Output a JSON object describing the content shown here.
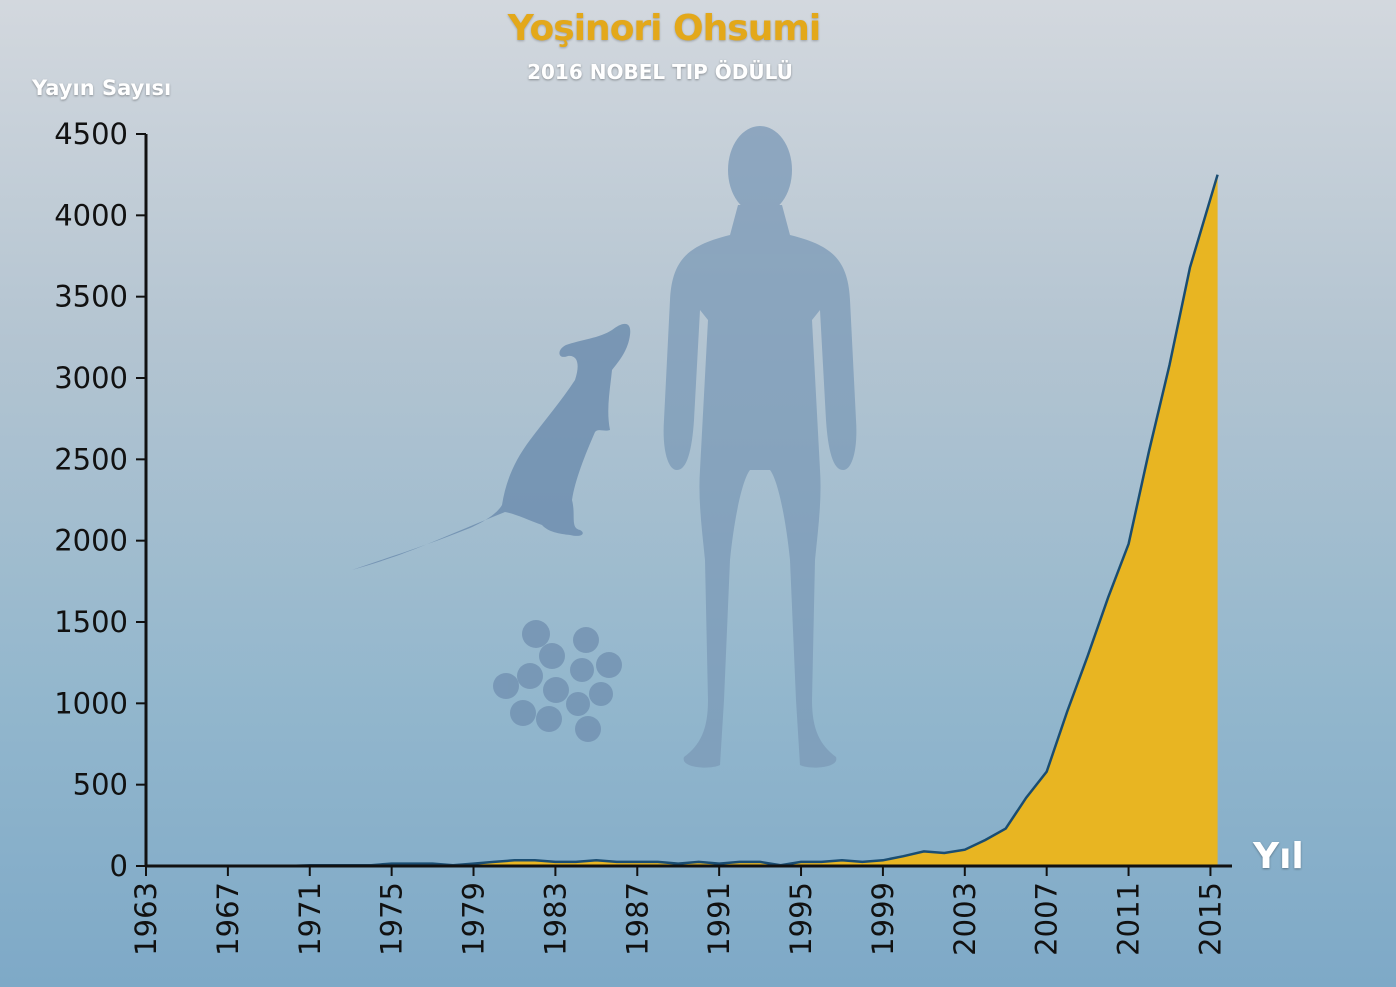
{
  "header": {
    "title": "Yoşinori Ohsumi",
    "subtitle": "2016 NOBEL TIP ÖDÜLÜ"
  },
  "colors": {
    "area_fill": "#e8b522",
    "line": "#1a4d72",
    "title": "#e3a81a",
    "axis": "#111111"
  },
  "illustrations": [
    "rat-silhouette",
    "human-silhouette",
    "yeast-cells"
  ],
  "chart_data": {
    "type": "area",
    "title": "Yoşinori Ohsumi",
    "subtitle": "2016 NOBEL TIP ÖDÜLÜ",
    "ylabel": "Yayın Sayısı",
    "xlabel": "Yıl",
    "ylim": [
      0,
      4500
    ],
    "xlim": [
      1963,
      2016
    ],
    "yticks": [
      "0",
      "500",
      "1000",
      "1500",
      "2000",
      "2500",
      "3000",
      "3500",
      "4000",
      "4500"
    ],
    "xticks": [
      "1963",
      "1967",
      "1971",
      "1975",
      "1979",
      "1983",
      "1987",
      "1991",
      "1995",
      "1999",
      "2003",
      "2007",
      "2011",
      "2015"
    ],
    "grid": false,
    "series": [
      {
        "x": [
          1963,
          1964,
          1965,
          1966,
          1967,
          1968,
          1969,
          1970,
          1971,
          1972,
          1973,
          1974,
          1975,
          1976,
          1977,
          1978,
          1979,
          1980,
          1981,
          1982,
          1983,
          1984,
          1985,
          1986,
          1987,
          1988,
          1989,
          1990,
          1991,
          1992,
          1993,
          1994,
          1995,
          1996,
          1997,
          1998,
          1999,
          2000,
          2001,
          2002,
          2003,
          2004,
          2005,
          2006,
          2007,
          2008,
          2009,
          2010,
          2011,
          2012,
          2013,
          2014,
          2015,
          2016
        ],
        "y": [
          0,
          0,
          0,
          0,
          0,
          0,
          0,
          0,
          5,
          5,
          5,
          5,
          15,
          15,
          15,
          5,
          15,
          25,
          35,
          35,
          25,
          25,
          35,
          25,
          25,
          25,
          15,
          25,
          15,
          25,
          25,
          5,
          25,
          25,
          35,
          25,
          35,
          60,
          90,
          80,
          100,
          160,
          230,
          420,
          580,
          950,
          1290,
          1650,
          1980,
          2550,
          3080,
          3680,
          4250,
          4250
        ]
      }
    ]
  }
}
